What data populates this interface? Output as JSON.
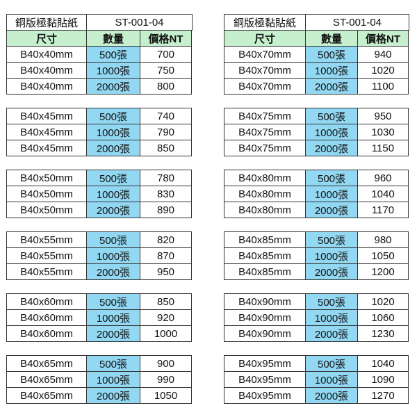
{
  "tables": [
    {
      "title": "銅版極黏貼紙",
      "code": "ST-001-04",
      "headers": [
        "尺寸",
        "數量",
        "價格NT"
      ],
      "groups": [
        {
          "size": "B40x40mm",
          "rows": [
            [
              "500張",
              "700"
            ],
            [
              "1000張",
              "750"
            ],
            [
              "2000張",
              "800"
            ]
          ]
        },
        {
          "size": "B40x45mm",
          "rows": [
            [
              "500張",
              "740"
            ],
            [
              "1000張",
              "790"
            ],
            [
              "2000張",
              "850"
            ]
          ]
        },
        {
          "size": "B40x50mm",
          "rows": [
            [
              "500張",
              "780"
            ],
            [
              "1000張",
              "830"
            ],
            [
              "2000張",
              "890"
            ]
          ]
        },
        {
          "size": "B40x55mm",
          "rows": [
            [
              "500張",
              "820"
            ],
            [
              "1000張",
              "870"
            ],
            [
              "2000張",
              "950"
            ]
          ]
        },
        {
          "size": "B40x60mm",
          "rows": [
            [
              "500張",
              "850"
            ],
            [
              "1000張",
              "920"
            ],
            [
              "2000張",
              "1000"
            ]
          ]
        },
        {
          "size": "B40x65mm",
          "rows": [
            [
              "500張",
              "900"
            ],
            [
              "1000張",
              "990"
            ],
            [
              "2000張",
              "1050"
            ]
          ]
        }
      ]
    },
    {
      "title": "銅版極黏貼紙",
      "code": "ST-001-04",
      "headers": [
        "尺寸",
        "數量",
        "價格NT"
      ],
      "groups": [
        {
          "size": "B40x70mm",
          "rows": [
            [
              "500張",
              "940"
            ],
            [
              "1000張",
              "1020"
            ],
            [
              "2000張",
              "1100"
            ]
          ]
        },
        {
          "size": "B40x75mm",
          "rows": [
            [
              "500張",
              "950"
            ],
            [
              "1000張",
              "1030"
            ],
            [
              "2000張",
              "1150"
            ]
          ]
        },
        {
          "size": "B40x80mm",
          "rows": [
            [
              "500張",
              "960"
            ],
            [
              "1000張",
              "1040"
            ],
            [
              "2000張",
              "1170"
            ]
          ]
        },
        {
          "size": "B40x85mm",
          "rows": [
            [
              "500張",
              "980"
            ],
            [
              "1000張",
              "1050"
            ],
            [
              "2000張",
              "1200"
            ]
          ]
        },
        {
          "size": "B40x90mm",
          "rows": [
            [
              "500張",
              "1020"
            ],
            [
              "1000張",
              "1060"
            ],
            [
              "2000張",
              "1230"
            ]
          ]
        },
        {
          "size": "B40x95mm",
          "rows": [
            [
              "500張",
              "1040"
            ],
            [
              "1000張",
              "1090"
            ],
            [
              "2000張",
              "1270"
            ]
          ]
        }
      ]
    }
  ],
  "colors": {
    "header_bg": "#c6efce",
    "qty_bg": "#92d8f3",
    "border": "#333333"
  }
}
